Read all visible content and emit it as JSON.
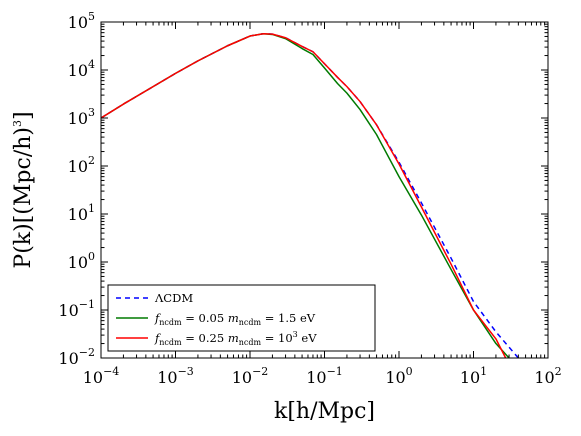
{
  "chart_data": {
    "type": "line",
    "xscale": "log",
    "yscale": "log",
    "xlim": [
      0.0001,
      100
    ],
    "ylim": [
      0.01,
      100000
    ],
    "xlabel": "k[h/Mpc]",
    "ylabel": "P(k)[(Mpc/h)3]",
    "x_tick_labels": [
      {
        "base": "10",
        "exp": "−4"
      },
      {
        "base": "10",
        "exp": "−3"
      },
      {
        "base": "10",
        "exp": "−2"
      },
      {
        "base": "10",
        "exp": "−1"
      },
      {
        "base": "10",
        "exp": "0"
      },
      {
        "base": "10",
        "exp": "1"
      },
      {
        "base": "10",
        "exp": "2"
      }
    ],
    "y_tick_labels": [
      {
        "base": "10",
        "exp": "−2"
      },
      {
        "base": "10",
        "exp": "−1"
      },
      {
        "base": "10",
        "exp": "0"
      },
      {
        "base": "10",
        "exp": "1"
      },
      {
        "base": "10",
        "exp": "2"
      },
      {
        "base": "10",
        "exp": "3"
      },
      {
        "base": "10",
        "exp": "4"
      },
      {
        "base": "10",
        "exp": "5"
      }
    ],
    "legend_position": "lower-left",
    "grid": false,
    "series": [
      {
        "name": "ΛCDM",
        "color": "#0000ff",
        "style": "dashed",
        "points": [
          [
            0.0001,
            1000
          ],
          [
            0.0002,
            1950
          ],
          [
            0.0005,
            4500
          ],
          [
            0.001,
            8500
          ],
          [
            0.002,
            15500
          ],
          [
            0.005,
            32000
          ],
          [
            0.01,
            51000
          ],
          [
            0.015,
            57000
          ],
          [
            0.02,
            56000
          ],
          [
            0.03,
            47000
          ],
          [
            0.05,
            31000
          ],
          [
            0.07,
            24000
          ],
          [
            0.1,
            13500
          ],
          [
            0.15,
            7000
          ],
          [
            0.2,
            4500
          ],
          [
            0.3,
            2200
          ],
          [
            0.5,
            720
          ],
          [
            1.0,
            120
          ],
          [
            2.0,
            17
          ],
          [
            5.0,
            1.2
          ],
          [
            10.0,
            0.15
          ],
          [
            20.0,
            0.035
          ],
          [
            40.0,
            0.01
          ]
        ]
      },
      {
        "name": "f_ncdm = 0.05 m_ncdm = 1.5 eV",
        "color": "#007a00",
        "style": "solid",
        "points": [
          [
            0.0001,
            1000
          ],
          [
            0.0002,
            1950
          ],
          [
            0.0005,
            4500
          ],
          [
            0.001,
            8500
          ],
          [
            0.002,
            15500
          ],
          [
            0.005,
            32000
          ],
          [
            0.01,
            51000
          ],
          [
            0.015,
            57000
          ],
          [
            0.02,
            55000
          ],
          [
            0.03,
            45000
          ],
          [
            0.05,
            28000
          ],
          [
            0.07,
            21000
          ],
          [
            0.1,
            11000
          ],
          [
            0.15,
            5200
          ],
          [
            0.2,
            3300
          ],
          [
            0.3,
            1500
          ],
          [
            0.5,
            450
          ],
          [
            1.0,
            60
          ],
          [
            2.0,
            9.5
          ],
          [
            5.0,
            0.7
          ],
          [
            10.0,
            0.1
          ],
          [
            20.0,
            0.02
          ],
          [
            30.0,
            0.01
          ]
        ]
      },
      {
        "name": "f_ncdm = 0.25 m_ncdm = 10^3 eV",
        "color": "#ff0000",
        "style": "solid",
        "points": [
          [
            0.0001,
            1000
          ],
          [
            0.0002,
            1950
          ],
          [
            0.0005,
            4500
          ],
          [
            0.001,
            8500
          ],
          [
            0.002,
            15500
          ],
          [
            0.005,
            32000
          ],
          [
            0.01,
            51000
          ],
          [
            0.015,
            57000
          ],
          [
            0.02,
            56000
          ],
          [
            0.03,
            47000
          ],
          [
            0.05,
            31000
          ],
          [
            0.07,
            24000
          ],
          [
            0.1,
            13500
          ],
          [
            0.15,
            7000
          ],
          [
            0.2,
            4500
          ],
          [
            0.3,
            2200
          ],
          [
            0.5,
            720
          ],
          [
            1.0,
            110
          ],
          [
            2.0,
            14
          ],
          [
            5.0,
            0.9
          ],
          [
            10.0,
            0.1
          ],
          [
            20.0,
            0.025
          ],
          [
            27.0,
            0.01
          ]
        ]
      }
    ],
    "legend": {
      "entries": [
        {
          "text": "ΛCDM",
          "parts": [
            {
              "t": "ΛCDM"
            }
          ]
        },
        {
          "text": "f_ncdm = 0.05 m_ncdm = 1.5 eV",
          "parts": [
            {
              "t": "f",
              "italic": true
            },
            {
              "t": "ncdm",
              "sub": true
            },
            {
              "t": " = 0.05 "
            },
            {
              "t": "m",
              "italic": true
            },
            {
              "t": "ncdm",
              "sub": true
            },
            {
              "t": " = 1.5 eV"
            }
          ]
        },
        {
          "text": "f_ncdm = 0.25 m_ncdm = 10^3 eV",
          "parts": [
            {
              "t": "f",
              "italic": true
            },
            {
              "t": "ncdm",
              "sub": true
            },
            {
              "t": " = 0.25 "
            },
            {
              "t": "m",
              "italic": true
            },
            {
              "t": "ncdm",
              "sub": true
            },
            {
              "t": " = 10"
            },
            {
              "t": "3",
              "sup": true
            },
            {
              "t": " eV"
            }
          ]
        }
      ]
    }
  }
}
